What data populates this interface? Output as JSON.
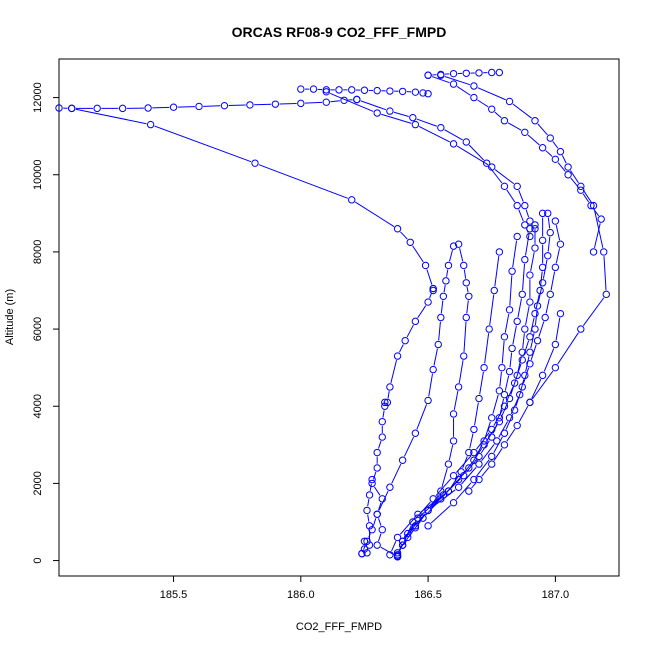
{
  "chart_data": {
    "type": "line",
    "title": "ORCAS RF08-9 CO2_FFF_FMPD",
    "xlabel": "CO2_FFF_FMPD",
    "ylabel": "Altitude (m)",
    "xlim": [
      185.05,
      187.25
    ],
    "ylim": [
      -400,
      13000
    ],
    "x_ticks": [
      185.5,
      186.0,
      186.5,
      187.0
    ],
    "x_tick_labels": [
      "185.5",
      "186.0",
      "186.5",
      "187.0"
    ],
    "y_ticks": [
      0,
      2000,
      4000,
      6000,
      8000,
      10000,
      12000
    ],
    "y_tick_labels": [
      "0",
      "2000",
      "4000",
      "6000",
      "8000",
      "10000",
      "12000"
    ],
    "grid": false,
    "marker": "open-circle",
    "color": "#0000ff",
    "series": [
      {
        "values": [
          [
            186.38,
            100
          ],
          [
            186.3,
            400
          ],
          [
            186.32,
            800
          ],
          [
            186.3,
            1200
          ],
          [
            186.32,
            1600
          ],
          [
            186.28,
            2000
          ],
          [
            186.3,
            2400
          ],
          [
            186.3,
            2800
          ],
          [
            186.32,
            3200
          ],
          [
            186.32,
            3600
          ],
          [
            186.33,
            4000
          ],
          [
            186.33,
            4100
          ]
        ]
      },
      {
        "values": [
          [
            186.34,
            4100
          ],
          [
            186.35,
            4500
          ],
          [
            186.38,
            5300
          ],
          [
            186.41,
            5700
          ],
          [
            186.45,
            6200
          ],
          [
            186.5,
            6700
          ],
          [
            186.52,
            7050
          ],
          [
            186.52,
            7000
          ]
        ]
      },
      {
        "values": [
          [
            186.52,
            7050
          ],
          [
            186.49,
            7650
          ],
          [
            186.43,
            8250
          ],
          [
            186.38,
            8600
          ],
          [
            186.2,
            9350
          ],
          [
            185.82,
            10300
          ],
          [
            185.41,
            11300
          ],
          [
            185.1,
            11720
          ],
          [
            185.05,
            11730
          ]
        ]
      },
      {
        "values": [
          [
            185.1,
            11720
          ],
          [
            185.2,
            11720
          ],
          [
            185.3,
            11720
          ],
          [
            185.4,
            11730
          ],
          [
            185.5,
            11750
          ],
          [
            185.6,
            11770
          ],
          [
            185.7,
            11790
          ],
          [
            185.8,
            11810
          ],
          [
            185.9,
            11830
          ],
          [
            186.0,
            11850
          ],
          [
            186.1,
            11880
          ],
          [
            186.17,
            11930
          ],
          [
            186.22,
            11950
          ]
        ]
      },
      {
        "values": [
          [
            186.22,
            11950
          ],
          [
            186.35,
            11650
          ],
          [
            186.44,
            11480
          ],
          [
            186.55,
            11220
          ],
          [
            186.65,
            10850
          ],
          [
            186.73,
            10300
          ],
          [
            186.8,
            9700
          ],
          [
            186.85,
            9200
          ],
          [
            186.88,
            8700
          ],
          [
            186.9,
            8400
          ]
        ]
      },
      {
        "values": [
          [
            186.0,
            12220
          ],
          [
            186.05,
            12220
          ],
          [
            186.1,
            12200
          ],
          [
            186.15,
            12200
          ],
          [
            186.2,
            12200
          ],
          [
            186.25,
            12190
          ],
          [
            186.3,
            12180
          ],
          [
            186.35,
            12170
          ],
          [
            186.4,
            12160
          ],
          [
            186.45,
            12140
          ],
          [
            186.48,
            12120
          ],
          [
            186.5,
            12100
          ]
        ]
      },
      {
        "values": [
          [
            186.1,
            12150
          ],
          [
            186.3,
            11600
          ],
          [
            186.45,
            11300
          ],
          [
            186.6,
            10800
          ],
          [
            186.75,
            10200
          ],
          [
            186.85,
            9700
          ],
          [
            186.88,
            9200
          ],
          [
            186.9,
            8800
          ],
          [
            186.92,
            8600
          ]
        ]
      },
      {
        "values": [
          [
            186.5,
            12580
          ],
          [
            186.55,
            12600
          ],
          [
            186.6,
            12620
          ],
          [
            186.65,
            12630
          ],
          [
            186.7,
            12640
          ],
          [
            186.75,
            12650
          ],
          [
            186.78,
            12650
          ]
        ]
      },
      {
        "values": [
          [
            186.5,
            12580
          ],
          [
            186.6,
            12350
          ],
          [
            186.68,
            12000
          ],
          [
            186.75,
            11700
          ],
          [
            186.8,
            11400
          ],
          [
            186.88,
            11100
          ],
          [
            186.95,
            10700
          ],
          [
            187.0,
            10400
          ],
          [
            187.05,
            10000
          ],
          [
            187.1,
            9600
          ],
          [
            187.14,
            9200
          ],
          [
            187.18,
            8850
          ],
          [
            187.15,
            8000
          ]
        ]
      },
      {
        "values": [
          [
            186.55,
            12580
          ],
          [
            186.68,
            12300
          ],
          [
            186.82,
            11900
          ],
          [
            186.92,
            11400
          ],
          [
            186.98,
            10950
          ],
          [
            187.02,
            10600
          ],
          [
            187.05,
            10200
          ],
          [
            187.1,
            9700
          ],
          [
            187.15,
            9200
          ],
          [
            187.19,
            8000
          ],
          [
            187.2,
            6900
          ],
          [
            187.1,
            6000
          ],
          [
            187.0,
            5000
          ],
          [
            186.9,
            4100
          ]
        ]
      },
      {
        "values": [
          [
            186.6,
            8150
          ],
          [
            186.58,
            7650
          ],
          [
            186.57,
            7250
          ],
          [
            186.56,
            6850
          ],
          [
            186.55,
            6300
          ],
          [
            186.54,
            5600
          ],
          [
            186.52,
            4950
          ],
          [
            186.5,
            4150
          ],
          [
            186.45,
            3300
          ],
          [
            186.4,
            2600
          ],
          [
            186.35,
            1900
          ],
          [
            186.3,
            1200
          ],
          [
            186.28,
            800
          ],
          [
            186.26,
            500
          ],
          [
            186.24,
            180
          ]
        ]
      },
      {
        "values": [
          [
            186.62,
            8200
          ],
          [
            186.64,
            7650
          ],
          [
            186.65,
            7200
          ],
          [
            186.66,
            6850
          ],
          [
            186.65,
            6300
          ],
          [
            186.64,
            5300
          ],
          [
            186.62,
            4500
          ],
          [
            186.6,
            3800
          ],
          [
            186.6,
            3100
          ],
          [
            186.58,
            2500
          ],
          [
            186.55,
            1800
          ],
          [
            186.5,
            1300
          ],
          [
            186.45,
            850
          ],
          [
            186.4,
            400
          ],
          [
            186.38,
            150
          ]
        ]
      },
      {
        "values": [
          [
            186.78,
            8000
          ],
          [
            186.76,
            7000
          ],
          [
            186.74,
            6000
          ],
          [
            186.72,
            5000
          ],
          [
            186.7,
            4200
          ],
          [
            186.68,
            3400
          ],
          [
            186.66,
            2800
          ],
          [
            186.63,
            2300
          ],
          [
            186.58,
            1800
          ],
          [
            186.5,
            1300
          ],
          [
            186.45,
            900
          ],
          [
            186.4,
            500
          ],
          [
            186.38,
            120
          ]
        ]
      },
      {
        "values": [
          [
            186.85,
            8400
          ],
          [
            186.83,
            7500
          ],
          [
            186.82,
            6500
          ],
          [
            186.8,
            5800
          ],
          [
            186.79,
            5000
          ],
          [
            186.78,
            4400
          ],
          [
            186.75,
            3700
          ],
          [
            186.72,
            3100
          ],
          [
            186.68,
            2600
          ],
          [
            186.62,
            2100
          ],
          [
            186.55,
            1600
          ],
          [
            186.48,
            1100
          ],
          [
            186.42,
            600
          ],
          [
            186.38,
            200
          ]
        ]
      },
      {
        "values": [
          [
            186.9,
            8600
          ],
          [
            186.88,
            7800
          ],
          [
            186.87,
            6900
          ],
          [
            186.85,
            6200
          ],
          [
            186.83,
            5500
          ],
          [
            186.82,
            4900
          ],
          [
            186.8,
            4300
          ],
          [
            186.78,
            3700
          ],
          [
            186.75,
            3200
          ],
          [
            186.7,
            2700
          ],
          [
            186.64,
            2200
          ],
          [
            186.56,
            1700
          ],
          [
            186.46,
            1100
          ],
          [
            186.4,
            500
          ],
          [
            186.38,
            100
          ]
        ]
      },
      {
        "values": [
          [
            186.92,
            8700
          ],
          [
            186.92,
            8100
          ],
          [
            186.9,
            7400
          ],
          [
            186.9,
            6700
          ],
          [
            186.88,
            6000
          ],
          [
            186.87,
            5400
          ],
          [
            186.85,
            4800
          ],
          [
            186.82,
            4200
          ],
          [
            186.78,
            3600
          ],
          [
            186.72,
            3000
          ],
          [
            186.66,
            2400
          ],
          [
            186.58,
            1800
          ],
          [
            186.46,
            1200
          ],
          [
            186.38,
            600
          ],
          [
            186.35,
            150
          ]
        ]
      },
      {
        "values": [
          [
            186.95,
            9000
          ],
          [
            186.95,
            8300
          ],
          [
            186.95,
            7600
          ],
          [
            186.94,
            7000
          ],
          [
            186.92,
            6400
          ],
          [
            186.9,
            5800
          ],
          [
            186.87,
            5200
          ],
          [
            186.84,
            4600
          ],
          [
            186.8,
            4000
          ],
          [
            186.75,
            3400
          ],
          [
            186.68,
            2800
          ],
          [
            186.6,
            2200
          ],
          [
            186.52,
            1600
          ],
          [
            186.44,
            1000
          ],
          [
            186.4,
            400
          ]
        ]
      },
      {
        "values": [
          [
            186.97,
            9000
          ],
          [
            186.98,
            8500
          ],
          [
            186.97,
            7900
          ],
          [
            186.95,
            7200
          ],
          [
            186.93,
            6600
          ],
          [
            186.92,
            6000
          ],
          [
            186.9,
            5400
          ],
          [
            186.88,
            4800
          ],
          [
            186.86,
            4300
          ],
          [
            186.82,
            3700
          ],
          [
            186.77,
            3100
          ],
          [
            186.7,
            2500
          ],
          [
            186.62,
            1900
          ],
          [
            186.5,
            1300
          ],
          [
            186.42,
            700
          ]
        ]
      },
      {
        "values": [
          [
            187.0,
            8800
          ],
          [
            187.02,
            8200
          ],
          [
            187.0,
            7600
          ],
          [
            186.98,
            6900
          ],
          [
            186.96,
            6300
          ],
          [
            186.93,
            5700
          ],
          [
            186.9,
            5100
          ],
          [
            186.87,
            4500
          ],
          [
            186.84,
            3900
          ],
          [
            186.8,
            3300
          ],
          [
            186.75,
            2700
          ],
          [
            186.68,
            2100
          ],
          [
            186.6,
            1500
          ],
          [
            186.5,
            900
          ]
        ]
      },
      {
        "values": [
          [
            187.02,
            6400
          ],
          [
            187.0,
            5600
          ],
          [
            186.95,
            4800
          ],
          [
            186.9,
            4100
          ],
          [
            186.85,
            3500
          ],
          [
            186.8,
            3000
          ],
          [
            186.75,
            2500
          ],
          [
            186.7,
            2100
          ],
          [
            186.66,
            1800
          ]
        ]
      },
      {
        "values": [
          [
            186.25,
            500
          ],
          [
            186.25,
            300
          ],
          [
            186.24,
            180
          ],
          [
            186.26,
            200
          ],
          [
            186.27,
            400
          ],
          [
            186.27,
            900
          ],
          [
            186.26,
            1300
          ],
          [
            186.27,
            1700
          ],
          [
            186.28,
            2100
          ]
        ]
      }
    ]
  }
}
